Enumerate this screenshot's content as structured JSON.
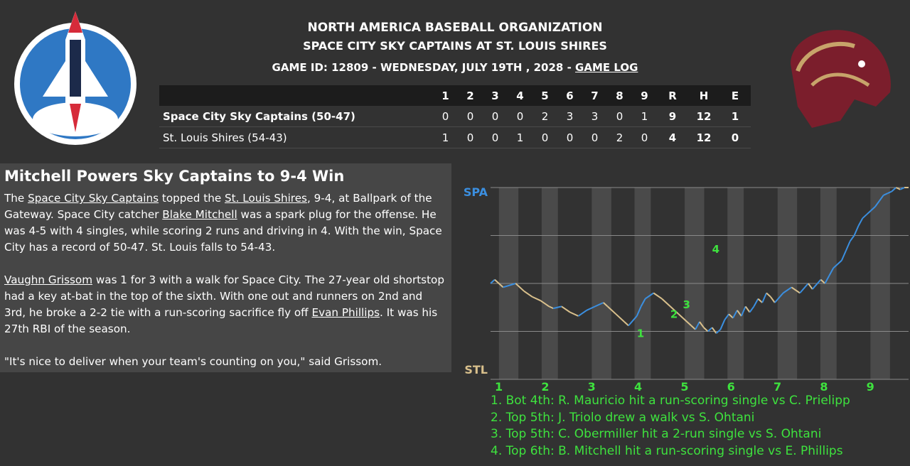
{
  "header": {
    "org": "NORTH AMERICA BASEBALL ORGANIZATION",
    "matchup": "SPACE CITY SKY CAPTAINS AT ST. LOUIS SHIRES",
    "game_info": "GAME ID: 12809 - WEDNESDAY, JULY 19TH , 2028 - ",
    "game_log_link": "GAME LOG"
  },
  "logos": {
    "away": "space-shuttle-logo",
    "home": "horse-head-logo"
  },
  "linescore": {
    "headers": [
      "1",
      "2",
      "3",
      "4",
      "5",
      "6",
      "7",
      "8",
      "9",
      "R",
      "H",
      "E"
    ],
    "rows": [
      {
        "team": "Space City Sky Captains (50-47)",
        "innings": [
          "0",
          "0",
          "0",
          "0",
          "2",
          "3",
          "3",
          "0",
          "1"
        ],
        "r": "9",
        "h": "12",
        "e": "1"
      },
      {
        "team": "St. Louis Shires (54-43)",
        "innings": [
          "1",
          "0",
          "0",
          "1",
          "0",
          "0",
          "0",
          "2",
          "0"
        ],
        "r": "4",
        "h": "12",
        "e": "0"
      }
    ]
  },
  "article": {
    "headline": "Mitchell Powers Sky Captains to 9-4 Win",
    "p1": {
      "t1": "The ",
      "away_team": "Space City Sky Captains",
      "t2": " topped the ",
      "home_team": "St. Louis Shires",
      "t3": ", 9-4, at Ballpark of the Gateway. Space City catcher ",
      "player1": "Blake Mitchell",
      "t4": " was a spark plug for the offense. He was 4-5 with 4 singles, while scoring 2 runs and driving in 4. With the win, Space City has a record of 50-47. St. Louis falls to 54-43."
    },
    "p2": {
      "player": "Vaughn Grissom",
      "t1": " was 1 for 3 with a walk for Space City. The 27-year old shortstop had a key at-bat in the top of the sixth. With one out and runners on 2nd and 3rd, he broke a 2-2 tie with a run-scoring sacrifice fly off ",
      "pitcher": "Evan Phillips",
      "t2": ". It was his 27th RBI of the season."
    },
    "quote": "\"It's nice to deliver when your team's counting on you,\" said Grissom."
  },
  "chart_data": {
    "type": "line",
    "title": "",
    "top_label": "SPA",
    "bottom_label": "STL",
    "innings": [
      "1",
      "2",
      "3",
      "4",
      "5",
      "6",
      "7",
      "8",
      "9"
    ],
    "ylim": [
      0,
      1
    ],
    "colors": {
      "away": "#3b8fe0",
      "home": "#d9c08c",
      "marker": "#3ee23e",
      "band": "#4a4a4a",
      "bg": "#323232"
    },
    "points": [
      [
        0,
        0.5
      ],
      [
        0.01,
        0.48
      ],
      [
        0.03,
        0.52
      ],
      [
        0.06,
        0.5
      ],
      [
        0.08,
        0.54
      ],
      [
        0.1,
        0.57
      ],
      [
        0.12,
        0.59
      ],
      [
        0.14,
        0.62
      ],
      [
        0.15,
        0.63
      ],
      [
        0.17,
        0.62
      ],
      [
        0.19,
        0.65
      ],
      [
        0.21,
        0.67
      ],
      [
        0.23,
        0.64
      ],
      [
        0.25,
        0.62
      ],
      [
        0.27,
        0.6
      ],
      [
        0.28,
        0.62
      ],
      [
        0.3,
        0.66
      ],
      [
        0.32,
        0.7
      ],
      [
        0.33,
        0.72
      ],
      [
        0.35,
        0.67
      ],
      [
        0.36,
        0.62
      ],
      [
        0.37,
        0.58
      ],
      [
        0.39,
        0.55
      ],
      [
        0.41,
        0.58
      ],
      [
        0.43,
        0.62
      ],
      [
        0.45,
        0.66
      ],
      [
        0.46,
        0.68
      ],
      [
        0.48,
        0.72
      ],
      [
        0.49,
        0.74
      ],
      [
        0.5,
        0.7
      ],
      [
        0.51,
        0.73
      ],
      [
        0.52,
        0.75
      ],
      [
        0.53,
        0.73
      ],
      [
        0.54,
        0.76
      ],
      [
        0.55,
        0.74
      ],
      [
        0.56,
        0.69
      ],
      [
        0.57,
        0.66
      ],
      [
        0.58,
        0.68
      ],
      [
        0.59,
        0.64
      ],
      [
        0.6,
        0.67
      ],
      [
        0.61,
        0.62
      ],
      [
        0.62,
        0.65
      ],
      [
        0.63,
        0.62
      ],
      [
        0.64,
        0.58
      ],
      [
        0.65,
        0.6
      ],
      [
        0.66,
        0.55
      ],
      [
        0.67,
        0.57
      ],
      [
        0.68,
        0.6
      ],
      [
        0.7,
        0.55
      ],
      [
        0.72,
        0.52
      ],
      [
        0.74,
        0.55
      ],
      [
        0.76,
        0.5
      ],
      [
        0.77,
        0.53
      ],
      [
        0.79,
        0.48
      ],
      [
        0.8,
        0.5
      ],
      [
        0.81,
        0.46
      ],
      [
        0.82,
        0.42
      ],
      [
        0.83,
        0.4
      ],
      [
        0.84,
        0.38
      ],
      [
        0.85,
        0.33
      ],
      [
        0.86,
        0.28
      ],
      [
        0.87,
        0.25
      ],
      [
        0.88,
        0.2
      ],
      [
        0.89,
        0.16
      ],
      [
        0.9,
        0.14
      ],
      [
        0.91,
        0.12
      ],
      [
        0.92,
        0.1
      ],
      [
        0.93,
        0.07
      ],
      [
        0.94,
        0.04
      ],
      [
        0.95,
        0.03
      ],
      [
        0.96,
        0.02
      ],
      [
        0.97,
        0.0
      ],
      [
        0.98,
        0.01
      ],
      [
        0.99,
        0.0
      ],
      [
        1,
        0.0
      ]
    ],
    "markers": [
      {
        "label": "1",
        "x": 0.35,
        "y": 0.78
      },
      {
        "label": "2",
        "x": 0.43,
        "y": 0.68
      },
      {
        "label": "3",
        "x": 0.46,
        "y": 0.63
      },
      {
        "label": "4",
        "x": 0.53,
        "y": 0.34
      }
    ],
    "events": [
      "1. Bot 4th: R. Mauricio hit a run-scoring single vs C. Prielipp",
      "2. Top 5th: J. Triolo drew a walk vs S. Ohtani",
      "3. Top 5th: C. Obermiller hit a 2-run single vs S. Ohtani",
      "4. Top 6th: B. Mitchell hit a run-scoring single vs E. Phillips"
    ]
  }
}
